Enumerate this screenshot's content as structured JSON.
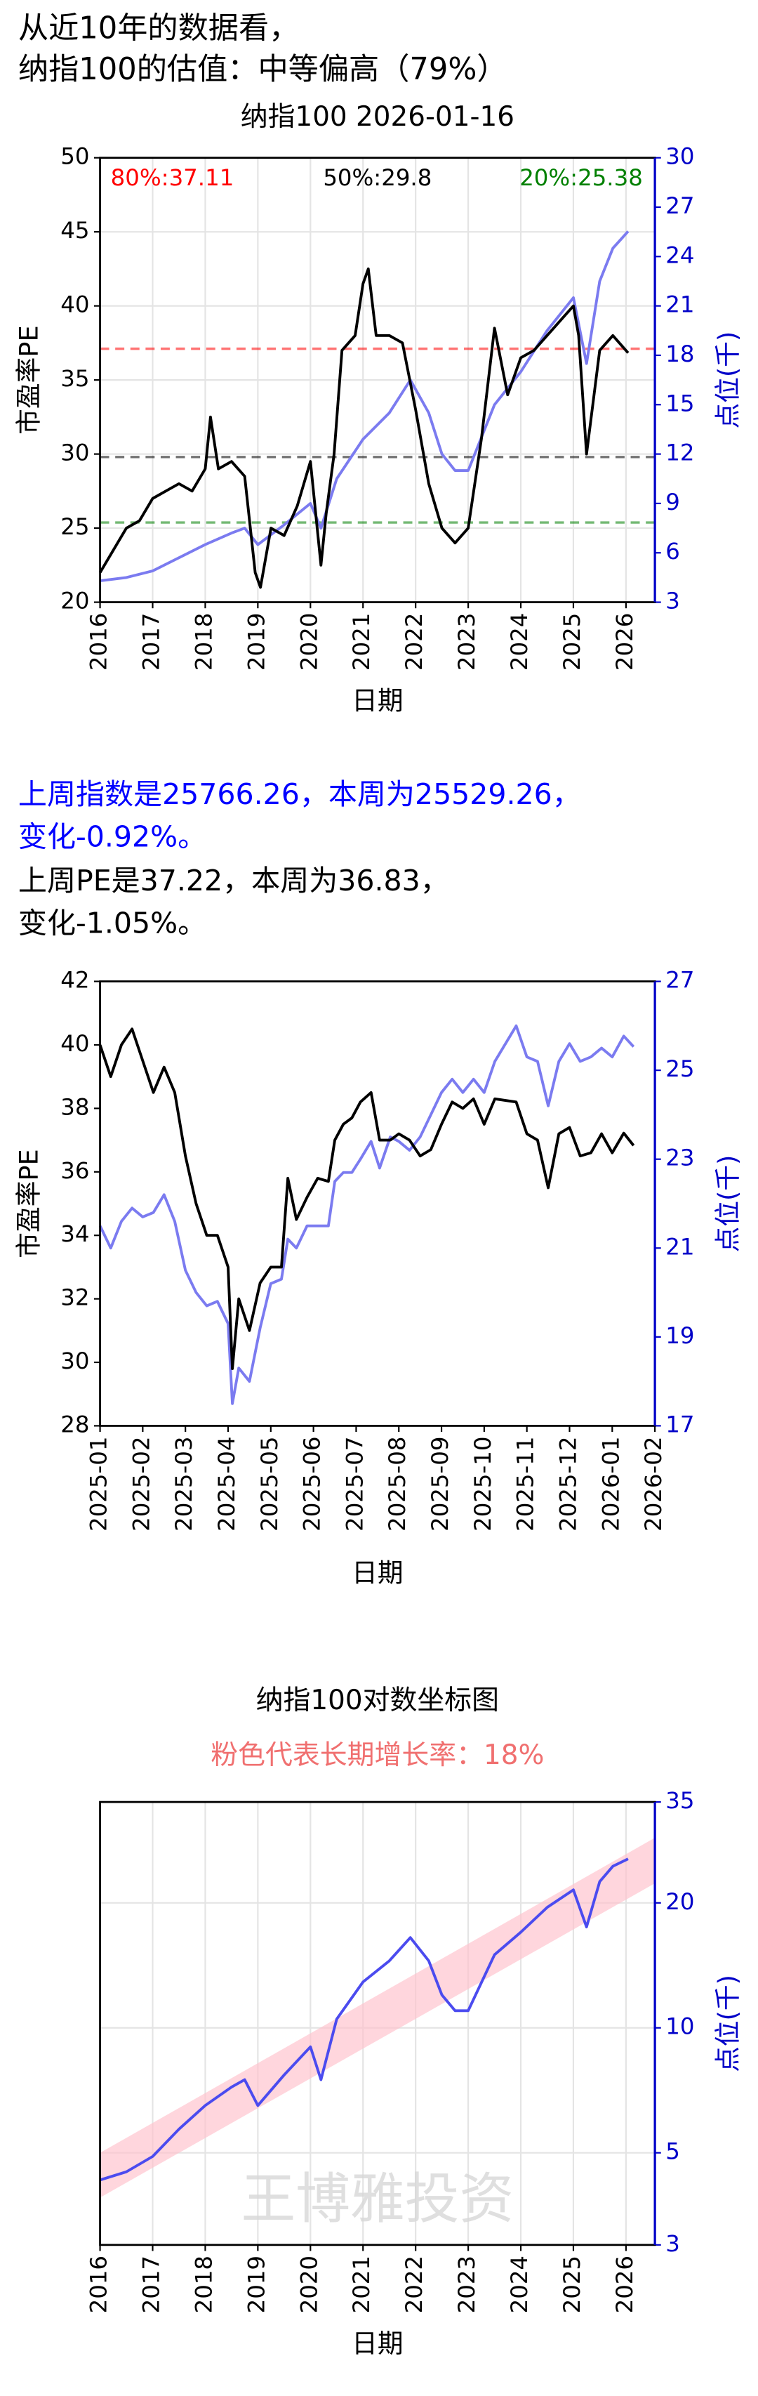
{
  "header": {
    "lines": [
      "从近10年的数据看，",
      "纳指100的估值：中等偏高（79%）"
    ]
  },
  "summary": {
    "index_lines": [
      "上周指数是25766.26，本周为25529.26，",
      "变化-0.92%。"
    ],
    "pe_lines": [
      "上周PE是37.22，本周为36.83，",
      "变化-1.05%。"
    ]
  },
  "chart_data": [
    {
      "type": "line",
      "title": "纳指100 2026-01-16",
      "ylabel": "市盈率PE",
      "y2label": "点位(千)",
      "xlabel": "日期",
      "grid": true,
      "xlim": [
        2016,
        2026.55
      ],
      "xticks": [
        2016,
        2017,
        2018,
        2019,
        2020,
        2021,
        2022,
        2023,
        2024,
        2025,
        2026
      ],
      "ylim": [
        20,
        50
      ],
      "yticks": [
        20,
        25,
        30,
        35,
        40,
        45,
        50
      ],
      "y2lim": [
        3,
        30
      ],
      "y2ticks": [
        3,
        6,
        9,
        12,
        15,
        18,
        21,
        24,
        27,
        30
      ],
      "hlines": [
        {
          "value": 37.11,
          "label": "80%:37.11",
          "color": "#ff0000",
          "position": "left"
        },
        {
          "value": 29.8,
          "label": "50%:29.8",
          "color": "#000000",
          "position": "center"
        },
        {
          "value": 25.38,
          "label": "20%:25.38",
          "color": "#008000",
          "position": "right"
        }
      ],
      "series": [
        {
          "color": "#000000",
          "axis": "y",
          "x": [
            2016,
            2016.25,
            2016.5,
            2016.75,
            2017,
            2017.25,
            2017.5,
            2017.75,
            2018,
            2018.1,
            2018.25,
            2018.5,
            2018.75,
            2018.95,
            2019.05,
            2019.25,
            2019.5,
            2019.75,
            2020,
            2020.2,
            2020.3,
            2020.45,
            2020.6,
            2020.85,
            2021,
            2021.1,
            2021.25,
            2021.5,
            2021.75,
            2022,
            2022.25,
            2022.5,
            2022.75,
            2023,
            2023.25,
            2023.5,
            2023.75,
            2024,
            2024.25,
            2024.5,
            2024.75,
            2025,
            2025.1,
            2025.25,
            2025.5,
            2025.75,
            2026.04
          ],
          "values": [
            22,
            23.5,
            25,
            25.5,
            27,
            27.5,
            28,
            27.5,
            29,
            32.5,
            29,
            29.5,
            28.5,
            22,
            21,
            25,
            24.5,
            26.5,
            29.5,
            22.5,
            26,
            30,
            37,
            38,
            41.5,
            42.5,
            38,
            38,
            37.5,
            33,
            28,
            25,
            24,
            25,
            31,
            38.5,
            34,
            36.5,
            37,
            38,
            39,
            40,
            38,
            30,
            37,
            38,
            36.83
          ]
        },
        {
          "color": "#7b7bf0",
          "axis": "y2",
          "x": [
            2016,
            2016.5,
            2017,
            2017.5,
            2018,
            2018.5,
            2018.75,
            2019,
            2019.5,
            2020,
            2020.2,
            2020.5,
            2021,
            2021.5,
            2021.9,
            2022.25,
            2022.5,
            2022.75,
            2023,
            2023.5,
            2024,
            2024.5,
            2025,
            2025.25,
            2025.5,
            2025.75,
            2026.04
          ],
          "values": [
            4.3,
            4.5,
            4.9,
            5.7,
            6.5,
            7.2,
            7.5,
            6.5,
            7.7,
            9,
            7.5,
            10.5,
            12.9,
            14.5,
            16.5,
            14.5,
            12,
            11,
            11,
            15,
            17,
            19.5,
            21.5,
            17.5,
            22.5,
            24.5,
            25.53
          ]
        }
      ]
    },
    {
      "type": "line",
      "ylabel": "市盈率PE",
      "y2label": "点位(千)",
      "xlabel": "日期",
      "grid": false,
      "xlim": [
        0,
        13
      ],
      "xticks": [
        {
          "value": 0,
          "label": "2025-01"
        },
        {
          "value": 1,
          "label": "2025-02"
        },
        {
          "value": 2,
          "label": "2025-03"
        },
        {
          "value": 3,
          "label": "2025-04"
        },
        {
          "value": 4,
          "label": "2025-05"
        },
        {
          "value": 5,
          "label": "2025-06"
        },
        {
          "value": 6,
          "label": "2025-07"
        },
        {
          "value": 7,
          "label": "2025-08"
        },
        {
          "value": 8,
          "label": "2025-09"
        },
        {
          "value": 9,
          "label": "2025-10"
        },
        {
          "value": 10,
          "label": "2025-11"
        },
        {
          "value": 11,
          "label": "2025-12"
        },
        {
          "value": 12,
          "label": "2026-01"
        },
        {
          "value": 13,
          "label": "2026-02"
        }
      ],
      "ylim": [
        28,
        42
      ],
      "yticks": [
        28,
        30,
        32,
        34,
        36,
        38,
        40,
        42
      ],
      "y2lim": [
        17,
        27
      ],
      "y2ticks": [
        17,
        19,
        21,
        23,
        25,
        27
      ],
      "series": [
        {
          "color": "#000000",
          "axis": "y",
          "x": [
            0,
            0.25,
            0.5,
            0.75,
            1,
            1.25,
            1.5,
            1.75,
            2,
            2.25,
            2.5,
            2.75,
            3,
            3.1,
            3.25,
            3.5,
            3.75,
            4,
            4.25,
            4.4,
            4.6,
            4.85,
            5.1,
            5.35,
            5.5,
            5.7,
            5.9,
            6.1,
            6.35,
            6.55,
            6.8,
            7,
            7.25,
            7.5,
            7.75,
            8,
            8.25,
            8.5,
            8.75,
            9,
            9.25,
            9.75,
            10,
            10.25,
            10.5,
            10.75,
            11,
            11.25,
            11.5,
            11.75,
            12,
            12.27,
            12.5
          ],
          "values": [
            40,
            39,
            40,
            40.5,
            39.5,
            38.5,
            39.3,
            38.5,
            36.5,
            35,
            34,
            34,
            33,
            29.8,
            32,
            31,
            32.5,
            33,
            33,
            35.8,
            34.5,
            35.2,
            35.8,
            35.7,
            37,
            37.5,
            37.7,
            38.2,
            38.5,
            37,
            37,
            37.2,
            37,
            36.5,
            36.7,
            37.5,
            38.2,
            38,
            38.3,
            37.5,
            38.3,
            38.2,
            37.2,
            37,
            35.5,
            37.2,
            37.4,
            36.5,
            36.6,
            37.2,
            36.6,
            37.22,
            36.83
          ]
        },
        {
          "color": "#7b7bf0",
          "axis": "y2",
          "x": [
            0,
            0.25,
            0.5,
            0.75,
            1,
            1.25,
            1.5,
            1.75,
            2,
            2.25,
            2.5,
            2.75,
            3,
            3.1,
            3.25,
            3.5,
            3.75,
            4,
            4.25,
            4.4,
            4.6,
            4.85,
            5.1,
            5.35,
            5.5,
            5.7,
            5.9,
            6.1,
            6.35,
            6.55,
            6.8,
            7,
            7.25,
            7.5,
            7.75,
            8,
            8.25,
            8.5,
            8.75,
            9,
            9.25,
            9.75,
            10,
            10.25,
            10.5,
            10.75,
            11,
            11.25,
            11.5,
            11.75,
            12,
            12.27,
            12.5
          ],
          "values": [
            21.5,
            21,
            21.6,
            21.9,
            21.7,
            21.8,
            22.2,
            21.6,
            20.5,
            20,
            19.7,
            19.8,
            19.3,
            17.5,
            18.3,
            18,
            19.2,
            20.2,
            20.3,
            21.2,
            21,
            21.5,
            21.5,
            21.5,
            22.5,
            22.7,
            22.7,
            23,
            23.4,
            22.8,
            23.5,
            23.4,
            23.2,
            23.5,
            24,
            24.5,
            24.8,
            24.5,
            24.8,
            24.5,
            25.2,
            26,
            25.3,
            25.2,
            24.2,
            25.2,
            25.6,
            25.2,
            25.3,
            25.5,
            25.3,
            25.77,
            25.53
          ]
        }
      ]
    },
    {
      "type": "line",
      "title": "纳指100对数坐标图",
      "subtitle": "粉色代表长期增长率：18%",
      "subtitle_color": "#f07070",
      "y2label": "点位(千)",
      "xlabel": "日期",
      "grid": true,
      "y2_scale": "log",
      "watermark": "王博雅投资",
      "xlim": [
        2016,
        2026.55
      ],
      "xticks": [
        2016,
        2017,
        2018,
        2019,
        2020,
        2021,
        2022,
        2023,
        2024,
        2025,
        2026
      ],
      "y2lim": [
        3,
        35
      ],
      "y2ticks": [
        3,
        5,
        10,
        20,
        35
      ],
      "band": {
        "color": "#ffc0cb",
        "x": [
          2016,
          2026.55
        ],
        "lower": [
          3.9,
          22.3
        ],
        "upper": [
          5.0,
          28.7
        ]
      },
      "series": [
        {
          "color": "#4b4bef",
          "axis": "y2",
          "x": [
            2016,
            2016.5,
            2017,
            2017.5,
            2018,
            2018.5,
            2018.75,
            2019,
            2019.5,
            2020,
            2020.2,
            2020.5,
            2021,
            2021.5,
            2021.9,
            2022.25,
            2022.5,
            2022.75,
            2023,
            2023.5,
            2024,
            2024.5,
            2025,
            2025.25,
            2025.5,
            2025.75,
            2026.04
          ],
          "values": [
            4.3,
            4.5,
            4.9,
            5.7,
            6.5,
            7.2,
            7.5,
            6.5,
            7.7,
            9,
            7.5,
            10.5,
            12.9,
            14.5,
            16.5,
            14.5,
            12,
            11,
            11,
            15,
            17,
            19.5,
            21.5,
            17.5,
            22.5,
            24.5,
            25.53
          ]
        }
      ]
    }
  ]
}
